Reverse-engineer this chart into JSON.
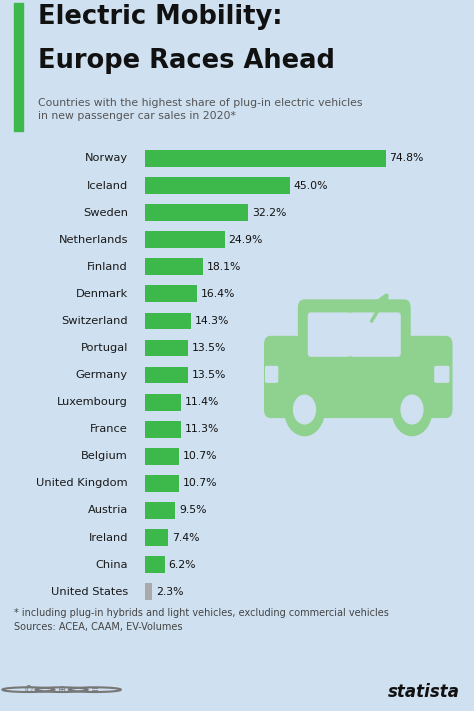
{
  "title_line1": "Electric Mobility:",
  "title_line2": "Europe Races Ahead",
  "subtitle": "Countries with the highest share of plug-in electric vehicles\nin new passenger car sales in 2020*",
  "footnote": "* including plug-in hybrids and light vehicles, excluding commercial vehicles\nSources: ACEA, CAAM, EV-Volumes",
  "countries": [
    "Norway",
    "Iceland",
    "Sweden",
    "Netherlands",
    "Finland",
    "Denmark",
    "Switzerland",
    "Portugal",
    "Germany",
    "Luxembourg",
    "France",
    "Belgium",
    "United Kingdom",
    "Austria",
    "Ireland",
    "China",
    "United States"
  ],
  "values": [
    74.8,
    45.0,
    32.2,
    24.9,
    18.1,
    16.4,
    14.3,
    13.5,
    13.5,
    11.4,
    11.3,
    10.7,
    10.7,
    9.5,
    7.4,
    6.2,
    2.3
  ],
  "bar_colors": [
    "#3CB94A",
    "#3CB94A",
    "#3CB94A",
    "#3CB94A",
    "#3CB94A",
    "#3CB94A",
    "#3CB94A",
    "#3CB94A",
    "#3CB94A",
    "#3CB94A",
    "#3CB94A",
    "#3CB94A",
    "#3CB94A",
    "#3CB94A",
    "#3CB94A",
    "#3CB94A",
    "#aaaaaa"
  ],
  "bg_color": "#cfe0f0",
  "title_color": "#111111",
  "bar_label_color": "#111111",
  "accent_color": "#3CB94A",
  "subtitle_color": "#555555",
  "footnote_color": "#444444"
}
